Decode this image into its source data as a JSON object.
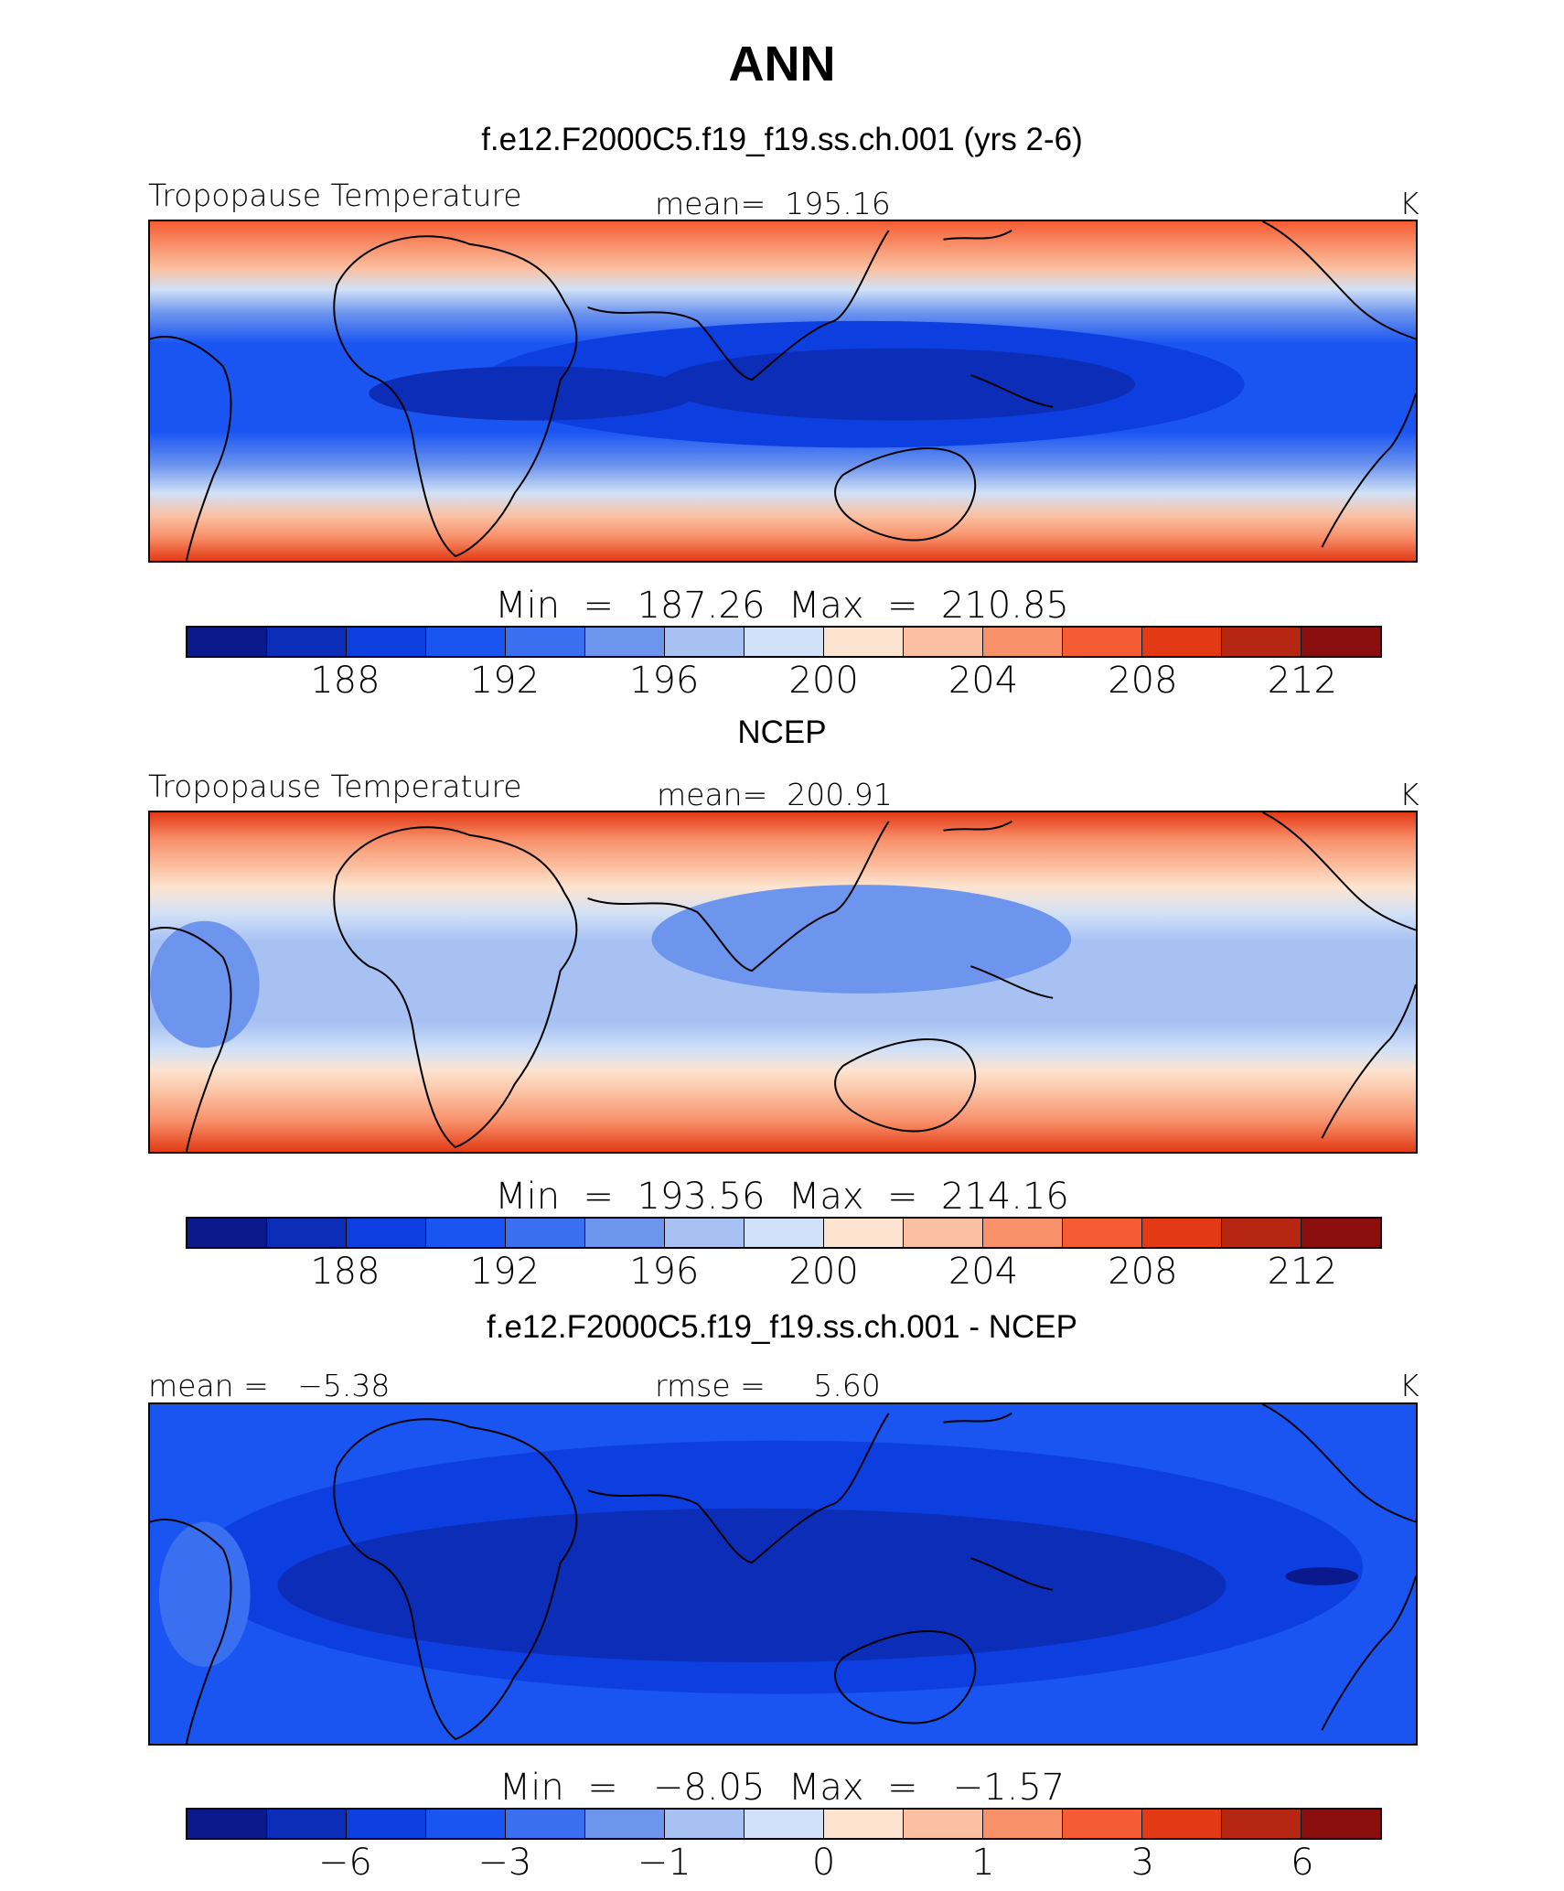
{
  "title": "ANN",
  "palette": [
    "#0a1a8c",
    "#0c2db8",
    "#0d3fe0",
    "#1a55f2",
    "#3a70f0",
    "#6d95ee",
    "#a7c1f3",
    "#d1e1f7",
    "#fde4d0",
    "#fbc0a1",
    "#f8906a",
    "#f65c33",
    "#e33a15",
    "#b52712",
    "#8b0e0e"
  ],
  "coastline_color": "#000000",
  "panels": [
    {
      "case_title": "f.e12.F2000C5.f19_f19.ss.ch.001 (yrs 2-6)",
      "left_label": "Tropopause Temperature",
      "center_label": "mean=  195.16",
      "units": "K",
      "min_max": "Min  =  187.26  Max  =  210.85",
      "tick_labels": [
        "188",
        "192",
        "196",
        "200",
        "204",
        "208",
        "212"
      ]
    },
    {
      "case_title": "NCEP",
      "left_label": "Tropopause Temperature",
      "center_label": "mean=  200.91",
      "units": "K",
      "min_max": "Min  =  193.56  Max  =  214.16",
      "tick_labels": [
        "188",
        "192",
        "196",
        "200",
        "204",
        "208",
        "212"
      ]
    },
    {
      "case_title": "f.e12.F2000C5.f19_f19.ss.ch.001 - NCEP",
      "left_label": "mean =   −5.38",
      "center_label": "rmse =     5.60",
      "units": "K",
      "min_max": "Min  =   −8.05  Max  =   −1.57",
      "tick_labels": [
        "−6",
        "−3",
        "−1",
        "0",
        "1",
        "3",
        "6"
      ]
    }
  ]
}
